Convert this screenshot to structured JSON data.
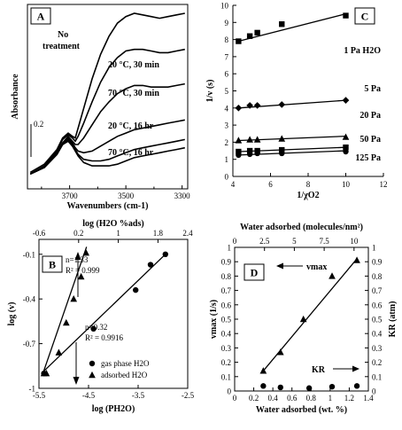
{
  "chart_data": [
    {
      "panel": "A",
      "type": "line",
      "xlabel": "Wavenumbers (cm-1)",
      "ylabel": "Absorbance",
      "xlim": [
        3850,
        3280
      ],
      "x_ticks": [
        3700,
        3500,
        3300
      ],
      "scale_bar_label": "0.2",
      "annotations": [
        "No treatment",
        "20 °C, 30 min",
        "70 °C, 30 min",
        "20 °C, 16 hr",
        "70 °C, 16 hr"
      ],
      "series": [
        {
          "x": [
            3840,
            3790,
            3745,
            3725,
            3705,
            3690,
            3680,
            3670,
            3650,
            3620,
            3590,
            3560,
            3530,
            3500,
            3470,
            3440,
            3410,
            3380,
            3350,
            3320,
            3290
          ],
          "y": [
            0.03,
            0.08,
            0.17,
            0.24,
            0.27,
            0.25,
            0.24,
            0.3,
            0.42,
            0.6,
            0.75,
            0.86,
            0.94,
            0.98,
            1.0,
            0.99,
            0.98,
            0.97,
            0.98,
            0.99,
            1.0
          ]
        },
        {
          "name": "20 °C, 30 min",
          "x": [
            3840,
            3790,
            3745,
            3725,
            3705,
            3690,
            3680,
            3670,
            3650,
            3620,
            3590,
            3560,
            3530,
            3500,
            3470,
            3440,
            3410,
            3380,
            3350,
            3320,
            3290
          ],
          "y": [
            0.02,
            0.07,
            0.16,
            0.23,
            0.26,
            0.24,
            0.22,
            0.25,
            0.33,
            0.46,
            0.58,
            0.67,
            0.73,
            0.77,
            0.78,
            0.78,
            0.77,
            0.76,
            0.76,
            0.77,
            0.78
          ]
        },
        {
          "name": "70 °C, 30 min",
          "x": [
            3840,
            3790,
            3745,
            3725,
            3705,
            3690,
            3680,
            3670,
            3650,
            3620,
            3590,
            3560,
            3530,
            3500,
            3470,
            3440,
            3410,
            3380,
            3350,
            3320,
            3290
          ],
          "y": [
            0.02,
            0.06,
            0.15,
            0.21,
            0.25,
            0.22,
            0.2,
            0.2,
            0.24,
            0.32,
            0.4,
            0.46,
            0.51,
            0.54,
            0.56,
            0.56,
            0.55,
            0.55,
            0.55,
            0.56,
            0.57
          ]
        },
        {
          "name": "20 °C, 16 hr",
          "x": [
            3840,
            3790,
            3745,
            3725,
            3705,
            3690,
            3680,
            3670,
            3650,
            3620,
            3590,
            3560,
            3530,
            3500,
            3470,
            3440,
            3410,
            3380,
            3350,
            3320,
            3290
          ],
          "y": [
            0.02,
            0.06,
            0.14,
            0.21,
            0.24,
            0.21,
            0.18,
            0.16,
            0.15,
            0.16,
            0.19,
            0.22,
            0.25,
            0.27,
            0.29,
            0.3,
            0.31,
            0.32,
            0.33,
            0.34,
            0.35
          ]
        },
        {
          "name": "70 °C, 16 hr",
          "x": [
            3840,
            3790,
            3745,
            3725,
            3705,
            3690,
            3680,
            3670,
            3650,
            3620,
            3590,
            3560,
            3530,
            3500,
            3470,
            3440,
            3410,
            3380,
            3350,
            3320,
            3290
          ],
          "y": [
            0.02,
            0.06,
            0.14,
            0.2,
            0.23,
            0.2,
            0.17,
            0.14,
            0.11,
            0.1,
            0.1,
            0.11,
            0.13,
            0.15,
            0.17,
            0.18,
            0.19,
            0.2,
            0.21,
            0.22,
            0.23
          ]
        },
        {
          "x": [
            3840,
            3790,
            3745,
            3725,
            3705,
            3690,
            3680,
            3670,
            3650,
            3620,
            3590,
            3560,
            3530,
            3500,
            3470,
            3440,
            3410,
            3380,
            3350,
            3320,
            3290
          ],
          "y": [
            0.02,
            0.06,
            0.14,
            0.2,
            0.22,
            0.19,
            0.16,
            0.13,
            0.09,
            0.07,
            0.07,
            0.07,
            0.08,
            0.1,
            0.12,
            0.13,
            0.14,
            0.15,
            0.16,
            0.17,
            0.18
          ]
        }
      ]
    },
    {
      "panel": "C",
      "type": "scatter",
      "xlabel": "1/χO2",
      "ylabel": "1/v (s)",
      "xlim": [
        0,
        12
      ],
      "ylim": [
        0,
        10
      ],
      "x_ticks": [
        4,
        6,
        8,
        10,
        12
      ],
      "y_ticks": [
        0,
        1,
        2,
        3,
        4,
        5,
        6,
        7,
        8,
        9,
        10
      ],
      "series": [
        {
          "name": "1 Pa H2O",
          "marker": "square",
          "x": [
            4.3,
            4.9,
            5.3,
            6.6,
            10.0
          ],
          "y": [
            7.9,
            8.2,
            8.4,
            8.9,
            9.4
          ],
          "fit": [
            [
              4.3,
              7.9
            ],
            [
              10.0,
              9.5
            ]
          ]
        },
        {
          "name": "5 Pa",
          "marker": "diamond",
          "x": [
            4.3,
            4.9,
            5.3,
            6.6,
            10.0
          ],
          "y": [
            4.0,
            4.15,
            4.15,
            4.2,
            4.45
          ],
          "fit": [
            [
              4.3,
              4.0
            ],
            [
              10.0,
              4.45
            ]
          ]
        },
        {
          "name": "20 Pa",
          "marker": "triangle",
          "x": [
            4.3,
            4.9,
            5.3,
            6.6,
            10.0
          ],
          "y": [
            2.1,
            2.15,
            2.15,
            2.2,
            2.3
          ],
          "fit": [
            [
              4.3,
              2.1
            ],
            [
              10.0,
              2.35
            ]
          ]
        },
        {
          "name": "50 Pa",
          "marker": "square",
          "x": [
            4.3,
            4.9,
            5.3,
            6.6,
            10.0
          ],
          "y": [
            1.45,
            1.5,
            1.5,
            1.55,
            1.7
          ],
          "fit": [
            [
              4.3,
              1.45
            ],
            [
              10.0,
              1.7
            ]
          ]
        },
        {
          "name": "125 Pa",
          "marker": "circle",
          "x": [
            4.3,
            4.9,
            5.3,
            6.6,
            10.0
          ],
          "y": [
            1.25,
            1.3,
            1.35,
            1.35,
            1.45
          ],
          "fit": [
            [
              4.3,
              1.25
            ],
            [
              10.0,
              1.5
            ]
          ]
        }
      ]
    },
    {
      "panel": "B",
      "type": "scatter",
      "xlabel": "log (PH2O)",
      "ylabel": "log (v)",
      "x2label": "log (H2O %ads)",
      "xlim": [
        -5.5,
        -2.5
      ],
      "ylim": [
        -1.0,
        0.0
      ],
      "x2lim": [
        -0.6,
        2.4
      ],
      "x_ticks": [
        -5.5,
        -4.5,
        -3.5,
        -2.5
      ],
      "y_ticks": [
        -1.0,
        -0.7,
        -0.4,
        -0.1
      ],
      "x2_ticks": [
        -0.6,
        0.2,
        1.0,
        1.8
      ],
      "x2_extra_tick_label": "2.4",
      "legend": [
        "gas phase H2O",
        "adsorbed H2O"
      ],
      "annotations": [
        {
          "text": "n=1.33",
          "r2": "R² = 0.999"
        },
        {
          "text": "n=0.32",
          "r2": "R² = 0.9916"
        }
      ],
      "series": [
        {
          "name": "gas phase H2O",
          "marker": "circle",
          "axis": "bottom",
          "x": [
            -5.4,
            -4.4,
            -3.55,
            -3.25,
            -2.95
          ],
          "y": [
            -0.9,
            -0.6,
            -0.34,
            -0.17,
            -0.1
          ],
          "fit": [
            [
              -5.45,
              -0.9
            ],
            [
              -2.95,
              -0.1
            ]
          ]
        },
        {
          "name": "adsorbed H2O",
          "marker": "triangle",
          "axis": "top",
          "x": [
            -0.5,
            -0.45,
            -0.2,
            -0.05,
            0.1,
            0.25,
            0.35
          ],
          "y": [
            -0.9,
            -0.9,
            -0.76,
            -0.56,
            -0.4,
            -0.25,
            -0.09
          ],
          "fit": [
            [
              -0.52,
              -0.9
            ],
            [
              0.36,
              -0.05
            ]
          ]
        }
      ]
    },
    {
      "panel": "D",
      "type": "scatter",
      "xlabel": "Water adsorbed (wt. %)",
      "ylabel": "vmax (1/s)",
      "y2label": "KR (atm)",
      "x2label": "Water adsorbed (molecules/nm²)",
      "xlim": [
        0,
        1.4
      ],
      "ylim": [
        0,
        1
      ],
      "x2lim": [
        0,
        11.2
      ],
      "y2lim": [
        0,
        1
      ],
      "x_ticks": [
        0,
        0.2,
        0.4,
        0.6,
        0.8,
        1.0,
        1.2,
        1.4
      ],
      "y_ticks": [
        0,
        0.1,
        0.2,
        0.3,
        0.4,
        0.5,
        0.6,
        0.7,
        0.8,
        0.9,
        1
      ],
      "x2_ticks": [
        0,
        2.5,
        5,
        7.5,
        10
      ],
      "annotations": [
        "vmax",
        "KR"
      ],
      "series": [
        {
          "name": "vmax",
          "marker": "triangle",
          "x": [
            0.3,
            0.48,
            0.72,
            1.02,
            1.28
          ],
          "y": [
            0.14,
            0.27,
            0.5,
            0.8,
            0.91
          ],
          "fit": [
            [
              0.3,
              0.14
            ],
            [
              1.28,
              0.92
            ]
          ]
        },
        {
          "name": "KR",
          "marker": "circle",
          "x": [
            0.3,
            0.48,
            0.78,
            1.02,
            1.28
          ],
          "y": [
            0.035,
            0.025,
            0.02,
            0.03,
            0.035
          ]
        }
      ]
    }
  ]
}
